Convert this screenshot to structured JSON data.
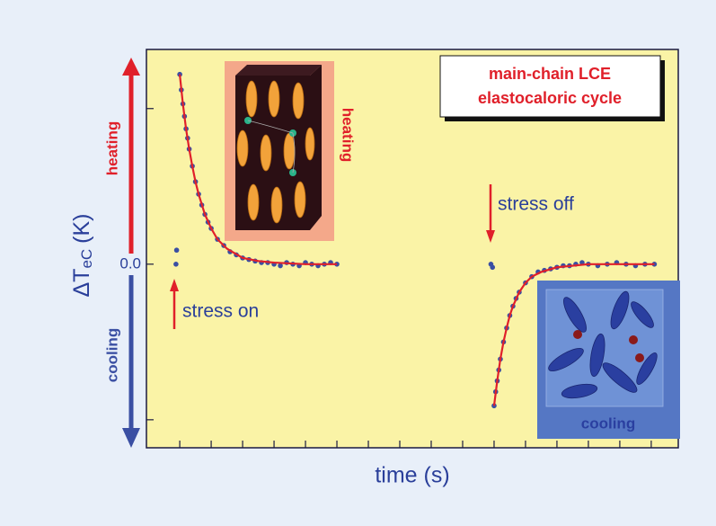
{
  "chart_data": {
    "type": "scatter",
    "title": [
      "main-chain LCE",
      "elastocaloric cycle"
    ],
    "ylabel": {
      "main": "ΔT",
      "sub": "eC",
      "unit": "(K)"
    },
    "xlabel": "time (s)",
    "xlim": [
      -1.06,
      15.86
    ],
    "ylim": [
      -1.18,
      1.38
    ],
    "yticks": [
      {
        "value": 0,
        "label": "0.0"
      }
    ],
    "y_tick_marks": [
      -1,
      1
    ],
    "x_tick_marks": [
      0,
      1,
      2,
      3,
      4,
      5,
      6,
      7,
      8,
      9,
      10,
      11,
      12,
      13,
      14,
      15
    ],
    "annotations": {
      "heating": "heating",
      "cooling": "cooling",
      "stress_on": "stress on",
      "stress_off": "stress off",
      "inset_heating": "heating",
      "inset_cooling": "cooling"
    },
    "series": [
      {
        "color": "#3a4fa3",
        "mode": "markers",
        "x": [
          -0.12,
          -0.1,
          0,
          0.05,
          0.1,
          0.15,
          0.2,
          0.25,
          0.3,
          0.4,
          0.5,
          0.6,
          0.7,
          0.8,
          0.9,
          1.0,
          1.2,
          1.4,
          1.6,
          1.8,
          2.0,
          2.2,
          2.4,
          2.6,
          2.8,
          3.0,
          3.2,
          3.4,
          3.6,
          3.8,
          4.0,
          4.2,
          4.4,
          4.6,
          4.8,
          5.0,
          9.9,
          9.95,
          10.0,
          10.05,
          10.1,
          10.15,
          10.2,
          10.3,
          10.4,
          10.5,
          10.6,
          10.7,
          10.8,
          11.0,
          11.2,
          11.4,
          11.6,
          11.8,
          12.0,
          12.2,
          12.4,
          12.6,
          12.8,
          13.0,
          13.3,
          13.6,
          13.9,
          14.2,
          14.5,
          14.8,
          15.1
        ],
        "values": [
          0.0,
          0.09,
          1.22,
          1.12,
          1.03,
          0.95,
          0.87,
          0.81,
          0.74,
          0.63,
          0.53,
          0.45,
          0.38,
          0.32,
          0.27,
          0.23,
          0.16,
          0.12,
          0.08,
          0.06,
          0.04,
          0.03,
          0.02,
          0.01,
          0.01,
          0.0,
          -0.01,
          0.01,
          0.0,
          -0.01,
          0.01,
          0.0,
          -0.01,
          0.0,
          0.01,
          0.0,
          0.0,
          -0.02,
          -0.91,
          -0.82,
          -0.75,
          -0.68,
          -0.61,
          -0.5,
          -0.41,
          -0.33,
          -0.27,
          -0.22,
          -0.18,
          -0.12,
          -0.08,
          -0.05,
          -0.04,
          -0.03,
          -0.02,
          -0.01,
          -0.01,
          0.0,
          0.01,
          0.0,
          -0.01,
          0.0,
          0.01,
          0.0,
          -0.01,
          0.0,
          0.0
        ]
      },
      {
        "color": "#e0202a",
        "mode": "line",
        "x": [
          0,
          0.1,
          0.2,
          0.3,
          0.4,
          0.5,
          0.6,
          0.8,
          1.0,
          1.2,
          1.5,
          2.0,
          2.5,
          3,
          4,
          5,
          7.5,
          10,
          10.1,
          10.2,
          10.3,
          10.4,
          10.5,
          10.6,
          10.8,
          11,
          11.2,
          11.5,
          12,
          12.5,
          13,
          14,
          15.1
        ],
        "values": [
          1.22,
          1.03,
          0.87,
          0.74,
          0.63,
          0.53,
          0.45,
          0.32,
          0.23,
          0.16,
          0.1,
          0.04,
          0.02,
          0.01,
          0,
          0,
          null,
          -0.91,
          -0.75,
          -0.61,
          -0.5,
          -0.41,
          -0.33,
          -0.27,
          -0.18,
          -0.12,
          -0.08,
          -0.05,
          -0.02,
          -0.01,
          0,
          0,
          0
        ]
      }
    ]
  }
}
